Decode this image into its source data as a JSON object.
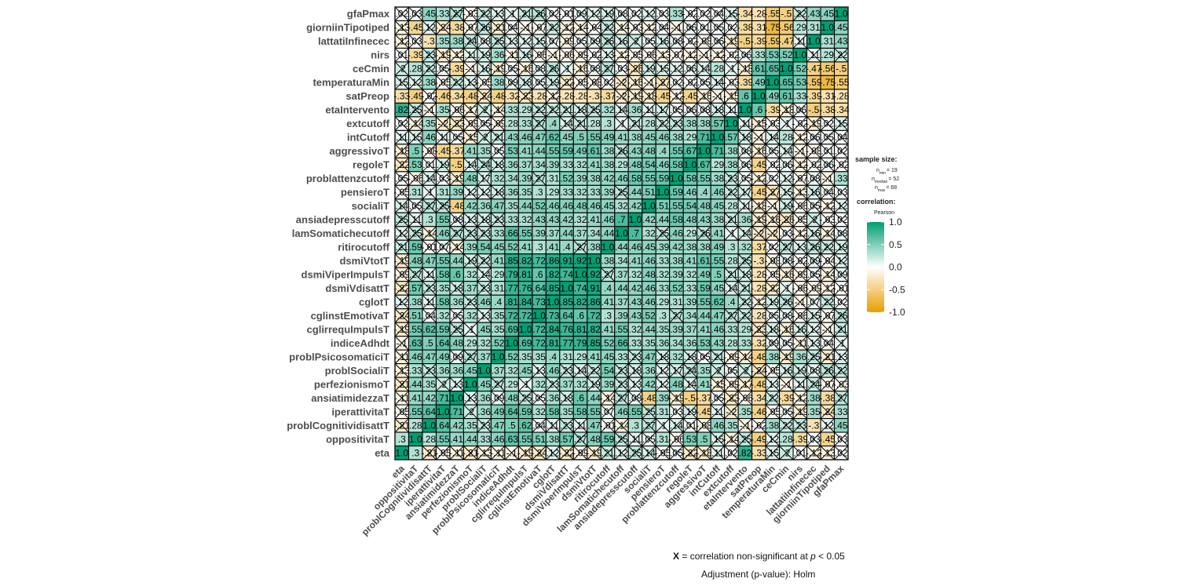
{
  "chart_data": {
    "type": "heatmap",
    "variables": [
      "eta",
      "oppositivitaT",
      "problCognitividisattT",
      "iperattivitaT",
      "ansiatimidezzaT",
      "perfezionismoT",
      "problSocialiT",
      "problPsicosomaticiT",
      "indiceAdhdt",
      "cglirrequImpulsT",
      "cglinstEmotivaT",
      "cglotT",
      "dsmiVdisattT",
      "dsmiViperImpulsT",
      "dsmiVtotT",
      "ritirocutoff",
      "lamSomatichecutoff",
      "ansiadepresscutoff",
      "socialiT",
      "pensieroT",
      "problattenzcutoff",
      "regoleT",
      "aggressivoT",
      "intCutoff",
      "extcutoff",
      "etaIntervento",
      "satPreop",
      "temperaturaMin",
      "ceCmin",
      "nirs",
      "lattatiInfinecec",
      "giorniinTipotiped",
      "gfaPmax"
    ],
    "values": [
      [
        1.0,
        0.3,
        -0.21,
        -0.05,
        -0.11,
        -0.21,
        -0.13,
        -0.11,
        -0.1,
        -0.19,
        -0.24,
        0.12,
        -0.22,
        -0.09,
        -0.19,
        0.21,
        0.12,
        0.25,
        0.14,
        -0.05,
        0.05,
        -0.22,
        -0.18,
        0.11,
        0.02,
        0.82,
        -0.33,
        0.15,
        0.2,
        0.01,
        -0.12,
        -0.13,
        0.02
      ],
      [
        0.3,
        1.0,
        0.28,
        0.55,
        0.41,
        0.44,
        0.33,
        0.46,
        0.63,
        0.55,
        0.51,
        0.38,
        0.57,
        0.27,
        0.48,
        0.59,
        0.25,
        0.11,
        0.05,
        0.31,
        -0.06,
        0.53,
        0.5,
        0.15,
        -0.14,
        0.25,
        -0.49,
        0.12,
        0.28,
        -0.39,
        0.03,
        -0.45,
        0.03
      ],
      [
        -0.21,
        0.28,
        1.0,
        0.64,
        0.42,
        0.35,
        0.23,
        0.47,
        0.5,
        0.62,
        0.04,
        0.11,
        0.23,
        0.11,
        0.47,
        -0.01,
        -0.14,
        0.3,
        0.27,
        0.1,
        0.14,
        0.01,
        -0.08,
        0.46,
        0.35,
        -0.1,
        -0.02,
        0.38,
        0.22,
        0.23,
        -0.3,
        0.12,
        0.45
      ],
      [
        -0.05,
        0.55,
        0.64,
        1.0,
        0.71,
        0.2,
        0.36,
        0.49,
        0.64,
        0.59,
        0.32,
        0.58,
        0.35,
        0.58,
        0.55,
        0.07,
        0.46,
        0.55,
        0.25,
        0.31,
        0.03,
        0.19,
        -0.45,
        0.11,
        -0.2,
        0.35,
        -0.46,
        -0.05,
        0.05,
        -0.19,
        0.35,
        -0.24,
        0.33
      ],
      [
        -0.11,
        0.41,
        0.42,
        0.71,
        1.0,
        0.13,
        0.36,
        0.09,
        0.48,
        0.25,
        0.05,
        0.36,
        0.18,
        0.6,
        0.44,
        -0.14,
        0.27,
        0.08,
        -0.48,
        0.39,
        -0.19,
        -0.5,
        -0.37,
        0.05,
        -0.23,
        -0.06,
        -0.34,
        0.22,
        -0.39,
        -0.12,
        0.38,
        -0.38,
        0.27
      ],
      [
        -0.21,
        0.44,
        0.35,
        0.2,
        0.13,
        1.0,
        0.45,
        0.27,
        0.29,
        0.1,
        0.32,
        0.23,
        0.37,
        0.32,
        0.19,
        0.39,
        0.23,
        0.13,
        0.42,
        0.12,
        0.48,
        0.14,
        0.41,
        -0.15,
        -0.09,
        -0.17,
        -0.48,
        0.13,
        -0.1,
        0.11,
        0.24,
        -0.07,
        -0.03
      ],
      [
        -0.13,
        0.33,
        0.23,
        0.36,
        0.36,
        0.45,
        1.0,
        0.37,
        0.32,
        0.45,
        0.13,
        0.46,
        0.23,
        0.14,
        0.22,
        0.54,
        0.23,
        0.18,
        0.36,
        0.12,
        0.17,
        0.24,
        0.35,
        0.2,
        0.05,
        0.2,
        -0.24,
        -0.05,
        0.16,
        0.19,
        0.08,
        0.26,
        0.22
      ],
      [
        -0.11,
        0.46,
        0.47,
        0.49,
        0.09,
        0.27,
        0.37,
        1.0,
        0.52,
        0.35,
        0.35,
        0.4,
        0.31,
        0.29,
        0.41,
        0.45,
        0.33,
        0.23,
        0.47,
        0.18,
        0.32,
        0.18,
        0.05,
        0.21,
        -0.09,
        -0.14,
        -0.48,
        0.38,
        -0.19,
        0.36,
        0.25,
        -0.21,
        0.13
      ],
      [
        -0.1,
        0.63,
        0.5,
        0.64,
        0.48,
        0.29,
        0.32,
        0.52,
        1.0,
        0.69,
        0.72,
        0.81,
        0.77,
        0.79,
        0.85,
        0.52,
        0.66,
        0.33,
        0.35,
        0.36,
        0.34,
        0.36,
        0.53,
        0.43,
        0.28,
        0.33,
        -0.32,
        0.09,
        0.05,
        -0.11,
        0.13,
        0.04,
        0.1
      ],
      [
        -0.19,
        0.55,
        0.62,
        0.59,
        0.25,
        0.1,
        0.45,
        0.35,
        0.69,
        1.0,
        0.72,
        0.84,
        0.76,
        0.81,
        0.82,
        0.41,
        0.55,
        0.32,
        0.44,
        0.35,
        0.39,
        0.37,
        0.41,
        0.46,
        0.33,
        0.29,
        -0.23,
        0.18,
        -0.16,
        0.16,
        0.12,
        -0.1,
        0.21
      ],
      [
        -0.24,
        0.51,
        0.04,
        0.32,
        0.05,
        0.32,
        0.13,
        0.35,
        0.72,
        0.72,
        1.0,
        0.73,
        0.64,
        0.6,
        0.72,
        0.3,
        0.39,
        0.43,
        0.52,
        0.3,
        0.27,
        0.34,
        0.44,
        0.47,
        0.27,
        0.22,
        -0.28,
        0.05,
        0.08,
        -0.06,
        0.15,
        -0.07,
        0.26
      ],
      [
        0.12,
        0.38,
        0.11,
        0.58,
        0.36,
        0.23,
        0.46,
        0.4,
        0.81,
        0.84,
        0.73,
        1.0,
        0.85,
        0.82,
        0.86,
        0.41,
        0.37,
        0.43,
        0.46,
        0.29,
        0.31,
        0.39,
        0.55,
        0.62,
        0.4,
        0.22,
        -0.12,
        0.19,
        0.26,
        -0.1,
        0.07,
        0.22,
        0.02
      ],
      [
        -0.22,
        0.57,
        0.23,
        0.35,
        0.18,
        0.37,
        0.23,
        0.31,
        0.77,
        0.76,
        0.64,
        0.85,
        1.0,
        0.74,
        0.91,
        0.4,
        0.44,
        0.42,
        0.46,
        0.33,
        0.52,
        0.33,
        0.59,
        0.45,
        0.14,
        0.21,
        -0.28,
        -0.22,
        0.1,
        -0.06,
        -0.09,
        -0.12,
        -0.01
      ],
      [
        -0.09,
        0.27,
        0.11,
        0.58,
        0.6,
        0.32,
        0.14,
        0.29,
        0.79,
        0.81,
        0.6,
        0.82,
        0.74,
        1.0,
        0.92,
        0.27,
        0.37,
        0.32,
        0.48,
        0.32,
        0.39,
        0.32,
        0.49,
        0.5,
        0.21,
        0.18,
        -0.28,
        -0.05,
        -0.16,
        -0.09,
        0.05,
        -0.14,
        0.09
      ],
      [
        -0.19,
        0.48,
        0.47,
        0.55,
        0.44,
        0.19,
        0.22,
        0.41,
        0.85,
        0.82,
        0.72,
        0.86,
        0.91,
        0.92,
        1.0,
        0.38,
        0.34,
        0.41,
        0.46,
        0.33,
        0.38,
        0.41,
        0.61,
        0.55,
        0.28,
        0.25,
        -0.3,
        -0.08,
        0.08,
        -0.02,
        0.09,
        -0.04,
        0.12
      ],
      [
        0.21,
        0.59,
        -0.01,
        0.07,
        -0.14,
        0.39,
        0.54,
        0.45,
        0.52,
        0.41,
        0.3,
        0.41,
        0.4,
        0.27,
        0.38,
        1.0,
        0.44,
        0.46,
        0.45,
        0.39,
        0.42,
        0.38,
        0.38,
        0.49,
        0.3,
        0.32,
        -0.37,
        0.02,
        0.27,
        0.13,
        0.26,
        0.22,
        0.19
      ],
      [
        0.12,
        0.25,
        -0.14,
        0.46,
        0.27,
        0.23,
        0.23,
        0.33,
        0.66,
        0.55,
        0.39,
        0.37,
        0.44,
        0.37,
        0.34,
        0.44,
        1.0,
        0.7,
        0.32,
        0.25,
        0.46,
        0.29,
        0.26,
        0.41,
        0.1,
        0.14,
        -0.2,
        -0.2,
        0.03,
        -0.12,
        0.16,
        -0.14,
        0.08
      ],
      [
        0.25,
        0.11,
        0.3,
        0.55,
        0.08,
        0.13,
        0.18,
        0.23,
        0.33,
        0.32,
        0.43,
        0.43,
        0.42,
        0.32,
        0.41,
        0.46,
        0.7,
        1.0,
        0.42,
        0.44,
        0.58,
        0.48,
        0.43,
        0.38,
        0.21,
        0.36,
        -0.19,
        -0.16,
        -0.26,
        -0.05,
        0.2,
        -0.03,
        0.02
      ],
      [
        0.14,
        0.05,
        0.27,
        0.25,
        -0.48,
        0.42,
        0.36,
        0.47,
        0.35,
        0.44,
        0.52,
        0.46,
        0.46,
        0.48,
        0.46,
        0.45,
        0.32,
        0.42,
        1.0,
        0.51,
        0.55,
        0.54,
        0.48,
        0.45,
        0.28,
        0.11,
        -0.18,
        -0.1,
        0.19,
        -0.06,
        0.05,
        -0.12,
        0.12
      ],
      [
        -0.05,
        0.31,
        0.1,
        0.31,
        0.39,
        0.12,
        0.12,
        0.18,
        0.36,
        0.35,
        0.3,
        0.29,
        0.33,
        0.32,
        0.33,
        0.39,
        0.25,
        0.44,
        0.51,
        1.0,
        0.59,
        0.46,
        0.4,
        0.46,
        0.22,
        0.17,
        -0.45,
        -0.27,
        0.15,
        -0.13,
        0.16,
        0.04,
        0.03
      ],
      [
        0.05,
        -0.06,
        0.14,
        0.03,
        -0.19,
        0.48,
        0.17,
        0.32,
        0.34,
        0.39,
        0.27,
        0.31,
        0.52,
        0.39,
        0.38,
        0.42,
        0.46,
        0.58,
        0.55,
        0.59,
        1.0,
        0.58,
        0.55,
        0.38,
        0.23,
        0.05,
        -0.12,
        0.02,
        0.12,
        -0.07,
        0.08,
        -0.1,
        0.33
      ],
      [
        -0.22,
        0.53,
        0.01,
        0.19,
        -0.5,
        0.14,
        0.24,
        0.18,
        0.36,
        0.37,
        0.34,
        0.39,
        0.33,
        0.32,
        0.41,
        0.38,
        0.29,
        0.48,
        0.54,
        0.46,
        0.58,
        1.0,
        0.67,
        0.29,
        0.38,
        0.06,
        -0.45,
        -0.02,
        0.06,
        -0.12,
        -0.02,
        0.06,
        -0.02
      ],
      [
        -0.18,
        0.5,
        -0.08,
        -0.45,
        -0.37,
        0.41,
        0.35,
        0.05,
        0.53,
        0.41,
        0.44,
        0.55,
        0.59,
        0.49,
        0.61,
        0.38,
        0.26,
        0.43,
        0.48,
        0.4,
        0.55,
        0.67,
        1.0,
        0.71,
        0.38,
        0.08,
        -0.16,
        0.05,
        0.14,
        -0.1,
        -0.08,
        0.01,
        0.02
      ],
      [
        0.11,
        0.15,
        0.46,
        0.11,
        0.05,
        -0.15,
        0.2,
        0.21,
        0.43,
        0.46,
        0.47,
        0.62,
        0.45,
        0.5,
        0.55,
        0.49,
        0.41,
        0.38,
        0.45,
        0.46,
        0.38,
        0.29,
        0.71,
        1.0,
        0.57,
        0.18,
        -0.1,
        0.14,
        0.28,
        -0.12,
        0.06,
        0.05,
        0.04
      ],
      [
        0.02,
        -0.14,
        0.35,
        -0.2,
        -0.23,
        -0.09,
        0.05,
        -0.09,
        0.28,
        0.33,
        0.27,
        0.4,
        0.14,
        0.21,
        0.28,
        0.3,
        0.1,
        0.21,
        0.28,
        0.22,
        0.23,
        0.38,
        0.38,
        0.57,
        1.0,
        0.11,
        -0.15,
        -0.03,
        0.1,
        -0.02,
        -0.19,
        0.02,
        0.15
      ],
      [
        0.82,
        0.25,
        -0.1,
        0.35,
        -0.06,
        -0.17,
        0.2,
        -0.14,
        0.33,
        0.29,
        0.22,
        0.22,
        0.21,
        0.18,
        0.25,
        0.32,
        0.14,
        0.36,
        0.11,
        0.17,
        0.05,
        0.06,
        0.08,
        0.18,
        0.11,
        1.0,
        0.6,
        -0.39,
        -0.18,
        0.06,
        -0.5,
        -0.38,
        -0.34
      ],
      [
        -0.33,
        -0.49,
        -0.02,
        -0.46,
        -0.34,
        -0.48,
        -0.24,
        -0.48,
        -0.32,
        -0.23,
        -0.28,
        -0.12,
        -0.28,
        -0.28,
        -0.3,
        -0.37,
        -0.2,
        -0.19,
        -0.18,
        -0.45,
        -0.12,
        -0.45,
        -0.16,
        -0.1,
        -0.15,
        0.6,
        1.0,
        0.49,
        0.61,
        0.33,
        -0.39,
        -0.31,
        -0.28
      ],
      [
        0.15,
        0.12,
        0.38,
        -0.05,
        0.22,
        0.13,
        -0.05,
        0.38,
        0.09,
        0.18,
        0.05,
        0.19,
        -0.22,
        -0.05,
        -0.08,
        0.02,
        -0.2,
        -0.16,
        -0.1,
        -0.27,
        0.02,
        -0.02,
        0.05,
        0.14,
        -0.03,
        -0.39,
        0.49,
        1.0,
        0.65,
        0.53,
        -0.59,
        -0.75,
        -0.55
      ],
      [
        0.2,
        0.28,
        0.22,
        0.05,
        -0.39,
        -0.1,
        0.16,
        -0.19,
        0.05,
        -0.16,
        0.08,
        0.26,
        0.1,
        -0.16,
        0.08,
        0.27,
        0.03,
        -0.26,
        0.19,
        0.15,
        0.12,
        0.06,
        0.14,
        0.28,
        0.1,
        -0.18,
        0.61,
        0.65,
        1.0,
        0.52,
        -0.47,
        -0.56,
        -0.5
      ],
      [
        0.01,
        -0.39,
        0.23,
        -0.19,
        -0.12,
        0.11,
        0.19,
        0.36,
        -0.11,
        0.16,
        -0.06,
        -0.1,
        -0.06,
        -0.09,
        -0.02,
        0.13,
        -0.12,
        -0.05,
        -0.06,
        -0.13,
        -0.07,
        -0.12,
        -0.1,
        -0.12,
        -0.02,
        0.06,
        0.33,
        0.53,
        0.52,
        1.0,
        0.11,
        0.29,
        0.22
      ],
      [
        -0.12,
        0.03,
        -0.3,
        0.35,
        0.38,
        0.24,
        0.08,
        0.25,
        0.13,
        0.12,
        0.15,
        0.07,
        -0.09,
        0.05,
        0.09,
        0.26,
        0.16,
        0.2,
        0.05,
        0.16,
        0.08,
        -0.02,
        -0.08,
        0.06,
        -0.19,
        -0.5,
        -0.39,
        -0.59,
        -0.47,
        0.11,
        1.0,
        0.31,
        0.43
      ],
      [
        -0.13,
        -0.45,
        0.12,
        -0.24,
        -0.38,
        -0.07,
        0.26,
        -0.21,
        0.04,
        -0.1,
        -0.07,
        0.22,
        -0.12,
        -0.14,
        -0.04,
        0.22,
        -0.14,
        -0.03,
        -0.12,
        0.04,
        -0.1,
        0.06,
        0.01,
        0.05,
        0.02,
        -0.38,
        -0.31,
        -0.75,
        -0.56,
        0.29,
        0.31,
        1.0,
        0.45
      ],
      [
        0.02,
        0.03,
        0.45,
        0.33,
        0.27,
        -0.03,
        0.22,
        0.13,
        0.1,
        0.21,
        0.26,
        0.02,
        -0.01,
        0.09,
        0.12,
        0.19,
        0.08,
        0.02,
        0.12,
        0.03,
        0.33,
        -0.02,
        0.02,
        0.04,
        0.15,
        -0.34,
        -0.28,
        -0.55,
        -0.5,
        0.22,
        0.43,
        0.45,
        1.0
      ]
    ],
    "significance_threshold": 0.28,
    "scale": {
      "min": -1.0,
      "max": 1.0,
      "ticks": [
        1.0,
        0.5,
        0.0,
        -0.5,
        -1.0
      ]
    },
    "colors": {
      "low": "#E69F00",
      "mid": "#FFFFFF",
      "high": "#009E73"
    }
  },
  "legend": {
    "sample_size_title": "sample size:",
    "n_min": {
      "label": "n",
      "sub": "min",
      "value": "= 19"
    },
    "n_median": {
      "label": "n",
      "sub": "median",
      "value": "= 52"
    },
    "n_max": {
      "label": "n",
      "sub": "max",
      "value": "= 68"
    },
    "correlation_title": "correlation:",
    "method": "Pearson",
    "tick_labels": [
      "1.0",
      "0.5",
      "0.0",
      "-0.5",
      "-1.0"
    ]
  },
  "caption": {
    "x_symbol": "X",
    "line1_pre": " = correlation non-significant at ",
    "p_symbol": "p",
    "line1_post": " < 0.05",
    "line2": "Adjustment (p-value): Holm"
  }
}
